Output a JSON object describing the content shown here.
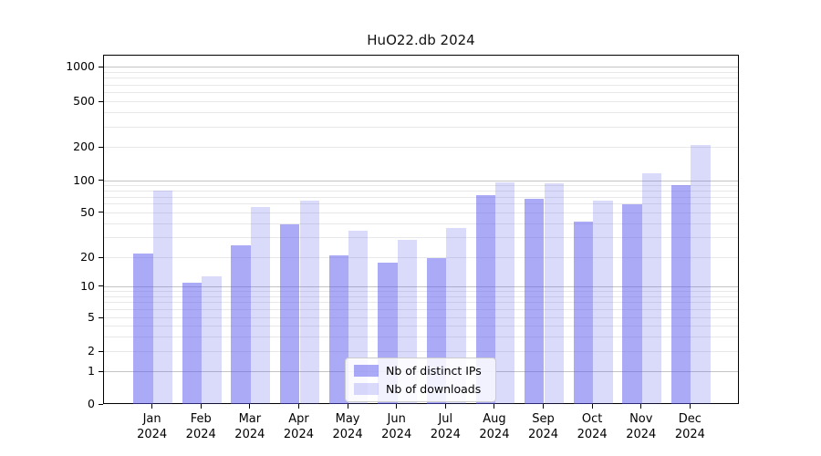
{
  "title": "HuO22.db 2024",
  "chart_data": {
    "type": "bar",
    "title": "HuO22.db 2024",
    "categories": [
      "Jan 2024",
      "Feb 2024",
      "Mar 2024",
      "Apr 2024",
      "May 2024",
      "Jun 2024",
      "Jul 2024",
      "Aug 2024",
      "Sep 2024",
      "Oct 2024",
      "Nov 2024",
      "Dec 2024"
    ],
    "series": [
      {
        "name": "Nb of distinct IPs",
        "color": "rgba(85,85,238,0.5)",
        "swatch_hex": "#aaaaf6",
        "values": [
          22,
          11,
          26,
          40,
          21,
          18,
          20,
          73,
          68,
          42,
          60,
          92
        ]
      },
      {
        "name": "Nb of downloads",
        "color": "rgba(85,85,238,0.22)",
        "swatch_hex": "#dadafa",
        "values": [
          82,
          13,
          57,
          66,
          35,
          29,
          37,
          98,
          95,
          66,
          118,
          210
        ]
      }
    ],
    "xlabel": "",
    "ylabel": "",
    "yscale": "symlog",
    "ylim": [
      0,
      1400
    ],
    "yticks": [
      0,
      1,
      2,
      5,
      10,
      20,
      50,
      100,
      200,
      500,
      1000
    ],
    "grid": "horizontal, major and minor",
    "legend_position": "lower center",
    "colors": {
      "background": "#ffffff",
      "axis": "#000000",
      "grid_major": "#c4c4c4",
      "grid_minor": "#e8e8e8"
    }
  }
}
